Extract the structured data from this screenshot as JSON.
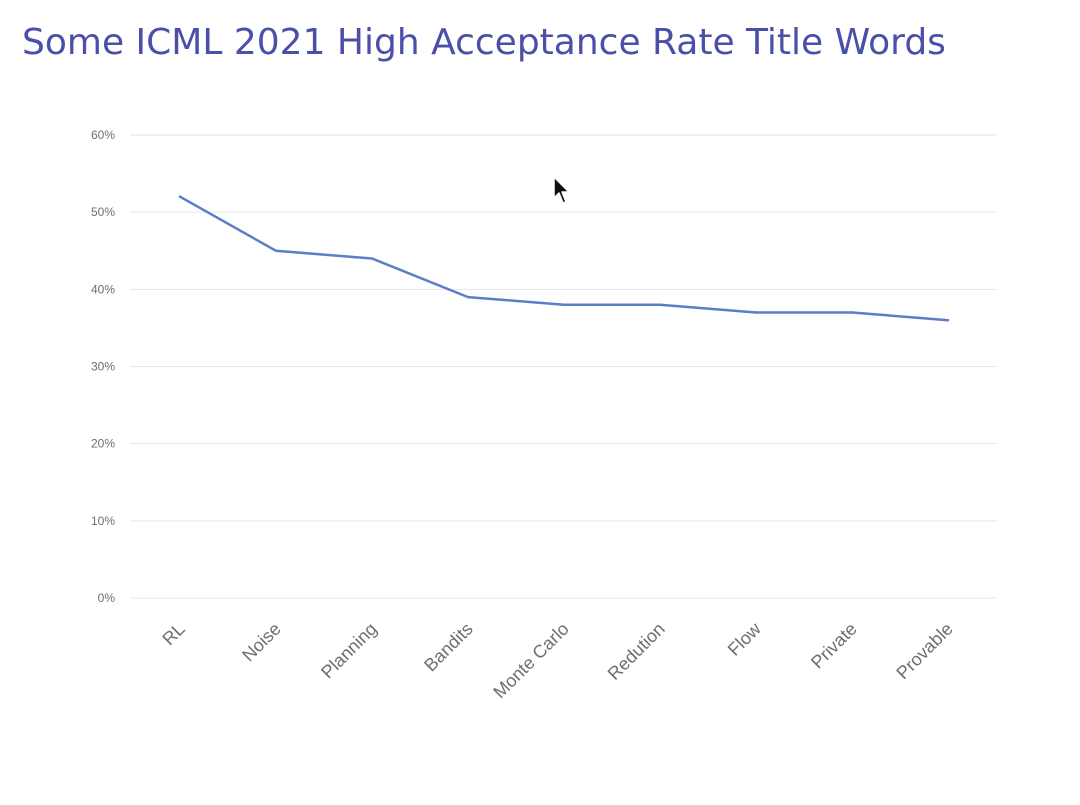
{
  "slide": {
    "title": "Some ICML 2021 High Acceptance Rate Title Words"
  },
  "chart_data": {
    "type": "line",
    "title": "",
    "xlabel": "",
    "ylabel": "",
    "categories": [
      "RL",
      "Noise",
      "Planning",
      "Bandits",
      "Monte Carlo",
      "Redution",
      "Flow",
      "Private",
      "Provable"
    ],
    "series": [
      {
        "values": [
          0.52,
          0.45,
          0.44,
          0.39,
          0.38,
          0.38,
          0.37,
          0.37,
          0.36
        ]
      }
    ],
    "ylim": [
      0,
      0.6
    ],
    "yticks": [
      0,
      0.1,
      0.2,
      0.3,
      0.4,
      0.5,
      0.6
    ],
    "ytick_labels": [
      "0%",
      "10%",
      "20%",
      "30%",
      "40%",
      "50%",
      "60%"
    ],
    "grid": true,
    "legend": "none",
    "line_color": "#5b7fc7",
    "grid_color": "#e6e6e6"
  }
}
